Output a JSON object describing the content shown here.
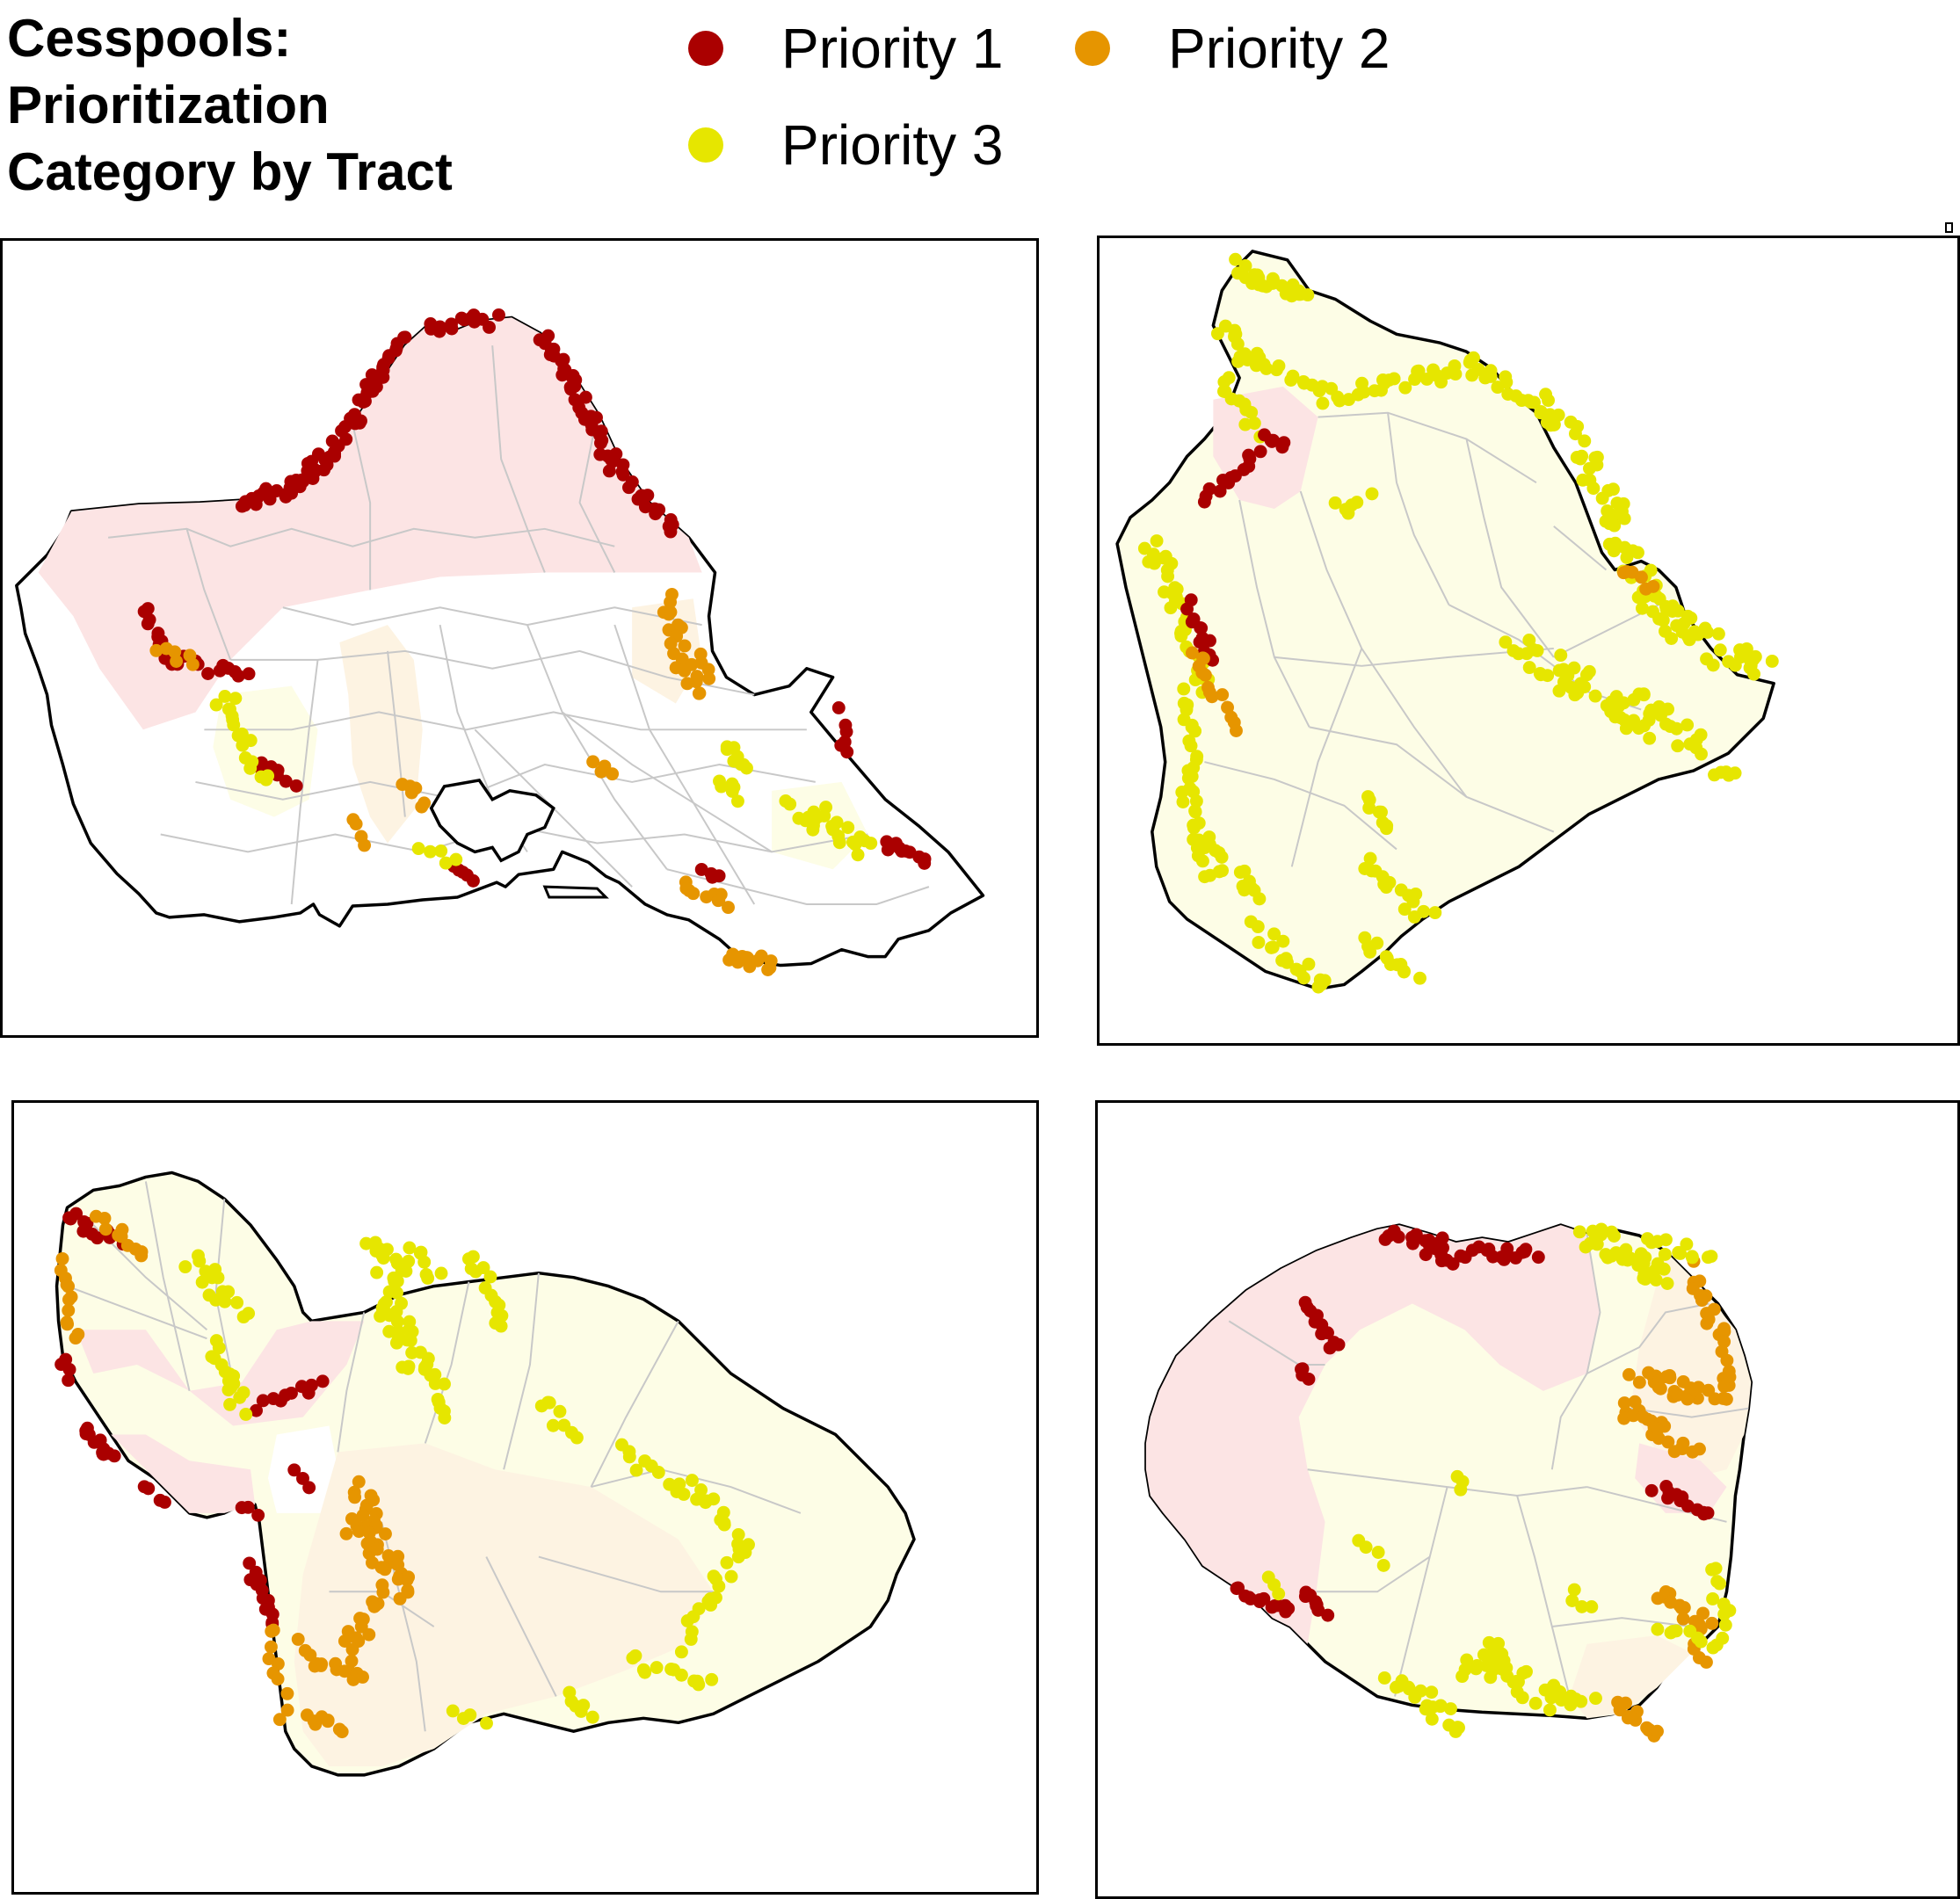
{
  "title": {
    "lines": [
      "Cesspools:",
      "Prioritization",
      "Category by Tract"
    ]
  },
  "legend": [
    {
      "label": "Priority 1",
      "color": "#aa0000"
    },
    {
      "label": "Priority 2",
      "color": "#e69500"
    },
    {
      "label": "Priority 3",
      "color": "#e6e600"
    }
  ],
  "colors": {
    "priority1": "#aa0000",
    "priority2": "#e69500",
    "priority3": "#e6e600",
    "tract_p1": "#fce4e4",
    "tract_p2": "#fdf3e2",
    "tract_p3": "#fdfde6",
    "tract_none": "#ffffff",
    "outline": "#000000",
    "tract_line": "#c8c8c8"
  },
  "panels": [
    {
      "island": "oahu"
    },
    {
      "island": "hawaii"
    },
    {
      "island": "maui"
    },
    {
      "island": "kauai"
    }
  ]
}
